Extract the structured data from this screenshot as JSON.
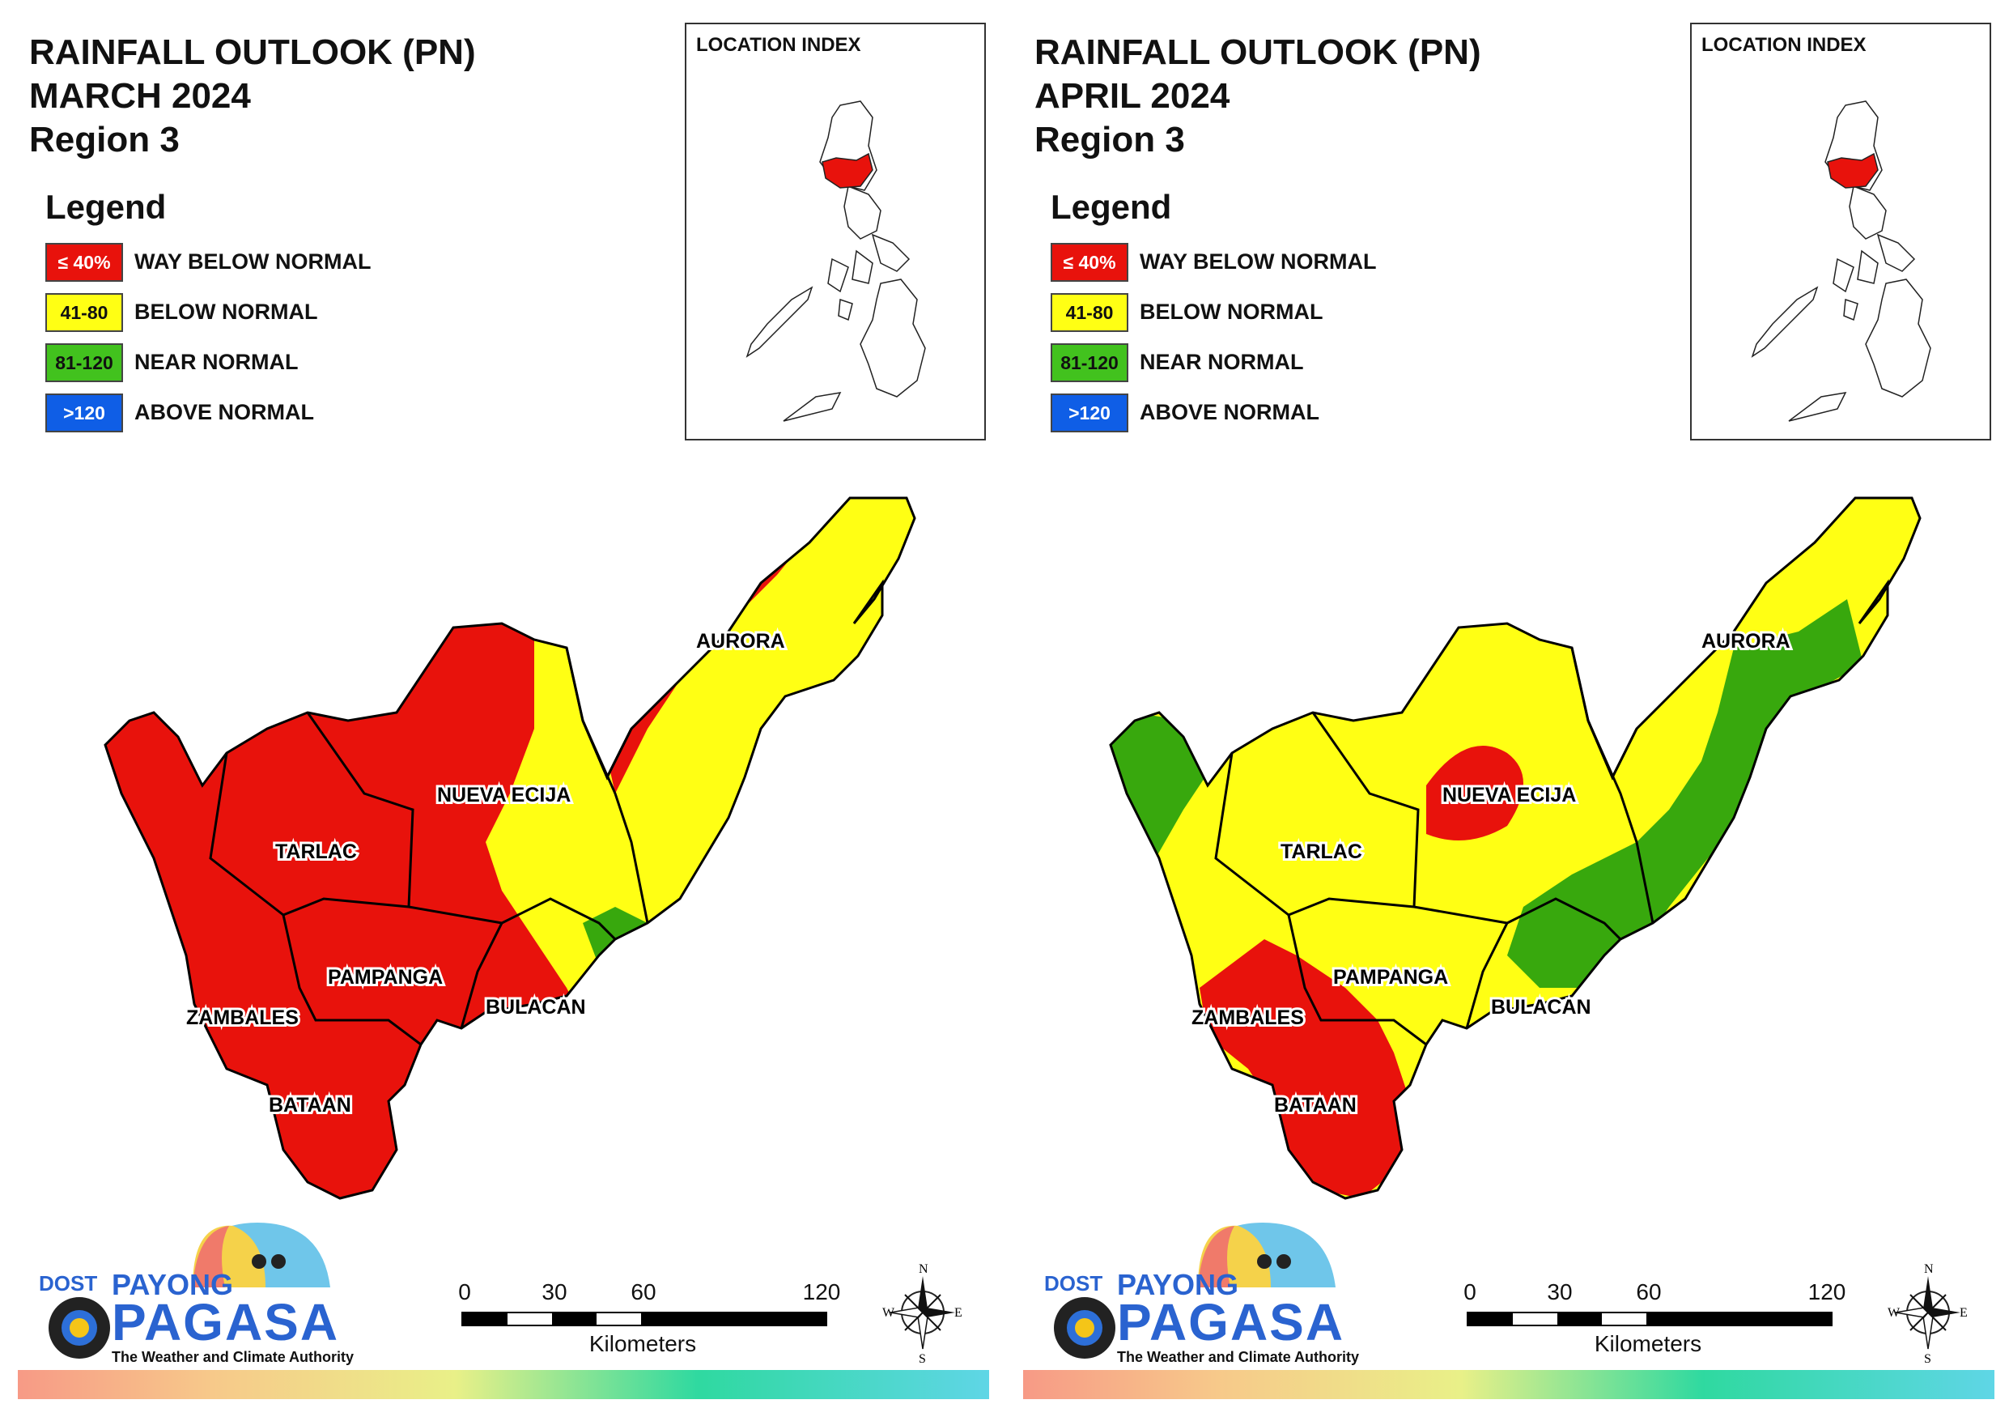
{
  "panels": [
    {
      "title_line1": "RAINFALL OUTLOOK (PN)",
      "title_line2": "MARCH 2024",
      "title_line3": "Region 3"
    },
    {
      "title_line1": "RAINFALL OUTLOOK (PN)",
      "title_line2": "APRIL 2024",
      "title_line3": "Region 3"
    }
  ],
  "legend": {
    "heading": "Legend",
    "items": [
      {
        "range": "≤ 40%",
        "label": "WAY BELOW NORMAL",
        "color": "#e8120c",
        "text_color": "#ffffff"
      },
      {
        "range": "41-80",
        "label": "BELOW NORMAL",
        "color": "#ffff14",
        "text_color": "#111111"
      },
      {
        "range": "81-120",
        "label": "NEAR NORMAL",
        "color": "#42c21e",
        "text_color": "#111111"
      },
      {
        "range": ">120",
        "label": "ABOVE NORMAL",
        "color": "#0f5ee6",
        "text_color": "#ffffff"
      }
    ]
  },
  "location_index": {
    "title": "LOCATION INDEX"
  },
  "provinces": [
    "AURORA",
    "NUEVA ECIJA",
    "TARLAC",
    "PAMPANGA",
    "BULACAN",
    "ZAMBALES",
    "BATAAN"
  ],
  "scale_bar": {
    "ticks": [
      "0",
      "30",
      "60",
      "120"
    ],
    "unit": "Kilometers"
  },
  "compass": {
    "n": "N",
    "s": "S",
    "e": "E",
    "w": "W"
  },
  "logo": {
    "dost": "DOST",
    "payong": "PAYONG",
    "pagasa": "PAGASA",
    "tagline": "The Weather and Climate Authority"
  },
  "colors": {
    "red": "#e8120c",
    "yellow": "#ffff14",
    "green": "#38a80d",
    "blue": "#0f5ee6"
  }
}
